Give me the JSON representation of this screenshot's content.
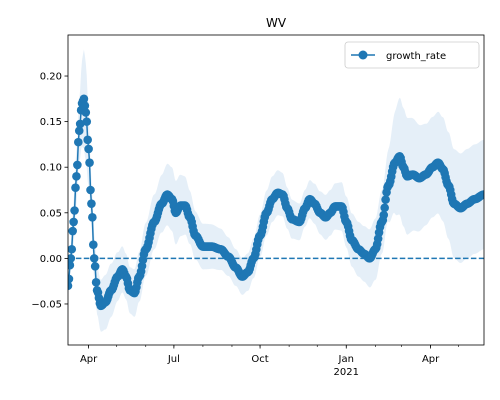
{
  "chart_data": {
    "type": "line",
    "title": "WV",
    "xlabel": "",
    "ylabel": "",
    "legend": {
      "placement": "top-right",
      "entries": [
        "growth_rate"
      ]
    },
    "grid": false,
    "xlim": [
      "2020-03-10",
      "2021-05-28"
    ],
    "ylim": [
      -0.095,
      0.245
    ],
    "x_ticks": [
      {
        "date": "2020-04-01",
        "label": "Apr"
      },
      {
        "date": "2020-07-01",
        "label": "Jul"
      },
      {
        "date": "2020-10-01",
        "label": "Oct"
      },
      {
        "date": "2021-01-01",
        "label": "Jan",
        "sublabel": "2021"
      },
      {
        "date": "2021-04-01",
        "label": "Apr"
      }
    ],
    "y_ticks": [
      -0.05,
      0.0,
      0.05,
      0.1,
      0.15,
      0.2
    ],
    "y_tick_labels": [
      "−0.05",
      "0.00",
      "0.05",
      "0.10",
      "0.15",
      "0.20"
    ],
    "reference_line": {
      "y": 0.0,
      "style": "dashed"
    },
    "colors": {
      "series": "#1f77b4",
      "band": "#dce9f5"
    },
    "series": [
      {
        "name": "growth_rate",
        "marker": "circle",
        "anchors": [
          [
            "2020-03-10",
            -0.03
          ],
          [
            "2020-03-13",
            0.0
          ],
          [
            "2020-03-16",
            0.04
          ],
          [
            "2020-03-19",
            0.09
          ],
          [
            "2020-03-22",
            0.14
          ],
          [
            "2020-03-25",
            0.17
          ],
          [
            "2020-03-27",
            0.175
          ],
          [
            "2020-03-29",
            0.16
          ],
          [
            "2020-04-01",
            0.12
          ],
          [
            "2020-04-04",
            0.06
          ],
          [
            "2020-04-07",
            0.0
          ],
          [
            "2020-04-10",
            -0.035
          ],
          [
            "2020-04-14",
            -0.052
          ],
          [
            "2020-04-19",
            -0.048
          ],
          [
            "2020-04-25",
            -0.035
          ],
          [
            "2020-05-02",
            -0.02
          ],
          [
            "2020-05-07",
            -0.012
          ],
          [
            "2020-05-11",
            -0.02
          ],
          [
            "2020-05-15",
            -0.035
          ],
          [
            "2020-05-20",
            -0.038
          ],
          [
            "2020-05-25",
            -0.02
          ],
          [
            "2020-06-01",
            0.01
          ],
          [
            "2020-06-10",
            0.04
          ],
          [
            "2020-06-18",
            0.06
          ],
          [
            "2020-06-24",
            0.07
          ],
          [
            "2020-06-29",
            0.065
          ],
          [
            "2020-07-03",
            0.05
          ],
          [
            "2020-07-08",
            0.058
          ],
          [
            "2020-07-13",
            0.058
          ],
          [
            "2020-07-18",
            0.045
          ],
          [
            "2020-07-24",
            0.025
          ],
          [
            "2020-08-01",
            0.013
          ],
          [
            "2020-08-10",
            0.013
          ],
          [
            "2020-08-20",
            0.01
          ],
          [
            "2020-08-28",
            0.002
          ],
          [
            "2020-09-05",
            -0.01
          ],
          [
            "2020-09-12",
            -0.02
          ],
          [
            "2020-09-18",
            -0.015
          ],
          [
            "2020-09-24",
            0.0
          ],
          [
            "2020-10-01",
            0.025
          ],
          [
            "2020-10-08",
            0.05
          ],
          [
            "2020-10-14",
            0.065
          ],
          [
            "2020-10-20",
            0.072
          ],
          [
            "2020-10-25",
            0.07
          ],
          [
            "2020-10-30",
            0.055
          ],
          [
            "2020-11-04",
            0.043
          ],
          [
            "2020-11-12",
            0.04
          ],
          [
            "2020-11-18",
            0.055
          ],
          [
            "2020-11-23",
            0.065
          ],
          [
            "2020-11-28",
            0.06
          ],
          [
            "2020-12-04",
            0.05
          ],
          [
            "2020-12-10",
            0.045
          ],
          [
            "2020-12-15",
            0.05
          ],
          [
            "2020-12-20",
            0.057
          ],
          [
            "2020-12-27",
            0.057
          ],
          [
            "2021-01-01",
            0.04
          ],
          [
            "2021-01-07",
            0.02
          ],
          [
            "2021-01-14",
            0.01
          ],
          [
            "2021-01-20",
            0.005
          ],
          [
            "2021-01-26",
            0.0
          ],
          [
            "2021-02-01",
            0.01
          ],
          [
            "2021-02-08",
            0.04
          ],
          [
            "2021-02-15",
            0.08
          ],
          [
            "2021-02-22",
            0.105
          ],
          [
            "2021-02-27",
            0.112
          ],
          [
            "2021-03-03",
            0.1
          ],
          [
            "2021-03-07",
            0.09
          ],
          [
            "2021-03-13",
            0.092
          ],
          [
            "2021-03-20",
            0.088
          ],
          [
            "2021-03-27",
            0.092
          ],
          [
            "2021-04-03",
            0.1
          ],
          [
            "2021-04-09",
            0.105
          ],
          [
            "2021-04-14",
            0.098
          ],
          [
            "2021-04-20",
            0.08
          ],
          [
            "2021-04-26",
            0.06
          ],
          [
            "2021-05-03",
            0.055
          ],
          [
            "2021-05-10",
            0.06
          ],
          [
            "2021-05-18",
            0.065
          ],
          [
            "2021-05-28",
            0.07
          ]
        ],
        "band_width": [
          [
            "2020-03-10",
            0.01
          ],
          [
            "2020-03-20",
            0.03
          ],
          [
            "2020-03-28",
            0.055
          ],
          [
            "2020-04-05",
            0.025
          ],
          [
            "2020-04-20",
            0.03
          ],
          [
            "2020-05-10",
            0.025
          ],
          [
            "2020-06-10",
            0.03
          ],
          [
            "2020-07-01",
            0.035
          ],
          [
            "2020-08-01",
            0.025
          ],
          [
            "2020-09-10",
            0.02
          ],
          [
            "2020-10-15",
            0.025
          ],
          [
            "2020-11-15",
            0.02
          ],
          [
            "2020-12-15",
            0.025
          ],
          [
            "2021-01-15",
            0.03
          ],
          [
            "2021-02-10",
            0.035
          ],
          [
            "2021-03-01",
            0.065
          ],
          [
            "2021-04-01",
            0.055
          ],
          [
            "2021-05-01",
            0.06
          ],
          [
            "2021-05-28",
            0.06
          ]
        ]
      }
    ]
  }
}
